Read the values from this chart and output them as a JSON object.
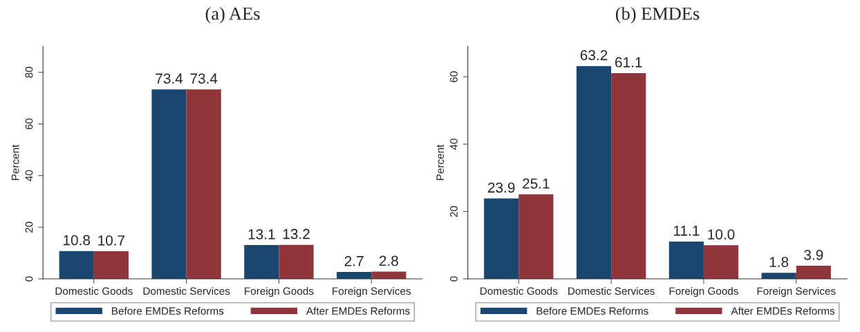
{
  "chart_data": [
    {
      "type": "bar",
      "title": "(a) AEs",
      "ylabel": "Percent",
      "categories": [
        "Domestic Goods",
        "Domestic Services",
        "Foreign Goods",
        "Foreign Services"
      ],
      "series": [
        {
          "name": "Before EMDEs Reforms",
          "color": "#1a476f",
          "values": [
            10.8,
            73.4,
            13.1,
            2.7
          ],
          "value_labels": [
            "10.8",
            "73.4",
            "13.1",
            "2.7"
          ]
        },
        {
          "name": "After EMDEs Reforms",
          "color": "#90353b",
          "values": [
            10.7,
            73.4,
            13.2,
            2.8
          ],
          "value_labels": [
            "10.7",
            "73.4",
            "13.2",
            "2.8"
          ]
        }
      ],
      "ylim": [
        0,
        90
      ],
      "yticks": [
        0,
        20,
        40,
        60,
        80
      ],
      "legend": "bottom"
    },
    {
      "type": "bar",
      "title": "(b) EMDEs",
      "ylabel": "Percent",
      "categories": [
        "Domestic Goods",
        "Domestic Services",
        "Foreign Goods",
        "Foreign Services"
      ],
      "series": [
        {
          "name": "Before EMDEs Reforms",
          "color": "#1a476f",
          "values": [
            23.9,
            63.2,
            11.1,
            1.8
          ],
          "value_labels": [
            "23.9",
            "63.2",
            "11.1",
            "1.8"
          ]
        },
        {
          "name": "After EMDEs Reforms",
          "color": "#90353b",
          "values": [
            25.1,
            61.1,
            10.0,
            3.9
          ],
          "value_labels": [
            "25.1",
            "61.1",
            "10.0",
            "3.9"
          ]
        }
      ],
      "ylim": [
        0,
        69
      ],
      "yticks": [
        0,
        20,
        40,
        60
      ],
      "legend": "bottom"
    }
  ]
}
